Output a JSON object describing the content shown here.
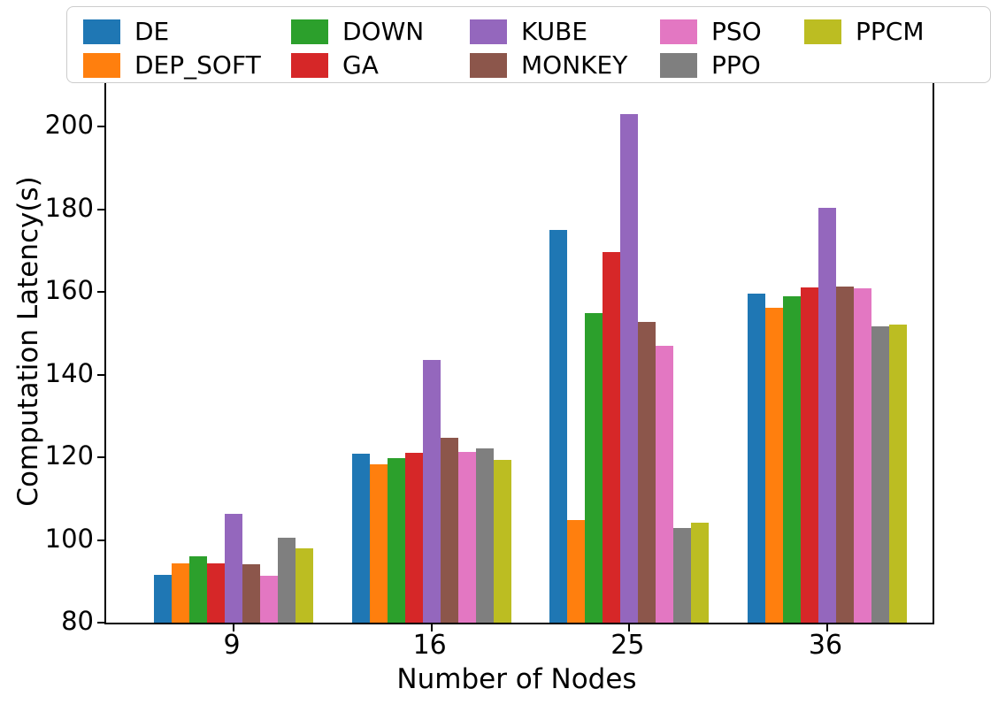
{
  "figure": {
    "background": "#ffffff",
    "spine_color": "#000000"
  },
  "legend": {
    "position": "top",
    "columns": 5,
    "rows": 2,
    "border_color": "#cccccc",
    "fill_order": "column-major"
  },
  "chart_data": {
    "type": "bar",
    "title": "",
    "xlabel": "Number of Nodes",
    "ylabel": "Computation Latency(s)",
    "categories": [
      "9",
      "16",
      "25",
      "36"
    ],
    "ylim": [
      80,
      211
    ],
    "yticks": [
      80,
      100,
      120,
      140,
      160,
      180,
      200
    ],
    "grid": false,
    "legend_position": "top, outside plot, 5 columns",
    "series": [
      {
        "name": "DE",
        "color": "#1f77b4",
        "values": [
          91.5,
          120.9,
          175.0,
          159.7
        ]
      },
      {
        "name": "DEP_SOFT",
        "color": "#ff7f0e",
        "values": [
          94.4,
          118.3,
          104.8,
          156.1
        ]
      },
      {
        "name": "DOWN",
        "color": "#2ca02c",
        "values": [
          96.0,
          119.8,
          155.0,
          159.0
        ]
      },
      {
        "name": "GA",
        "color": "#d62728",
        "values": [
          94.4,
          121.2,
          169.6,
          161.2
        ]
      },
      {
        "name": "KUBE",
        "color": "#9467bd",
        "values": [
          106.4,
          143.6,
          203.0,
          180.3
        ]
      },
      {
        "name": "MONKEY",
        "color": "#8c564b",
        "values": [
          94.1,
          124.7,
          152.7,
          161.4
        ]
      },
      {
        "name": "PSO",
        "color": "#e377c2",
        "values": [
          91.3,
          121.3,
          147.1,
          161.0
        ]
      },
      {
        "name": "PPO",
        "color": "#7f7f7f",
        "values": [
          100.6,
          122.2,
          102.8,
          151.8
        ]
      },
      {
        "name": "PPCM",
        "color": "#bcbd22",
        "values": [
          97.9,
          119.4,
          104.2,
          152.1
        ]
      }
    ]
  }
}
